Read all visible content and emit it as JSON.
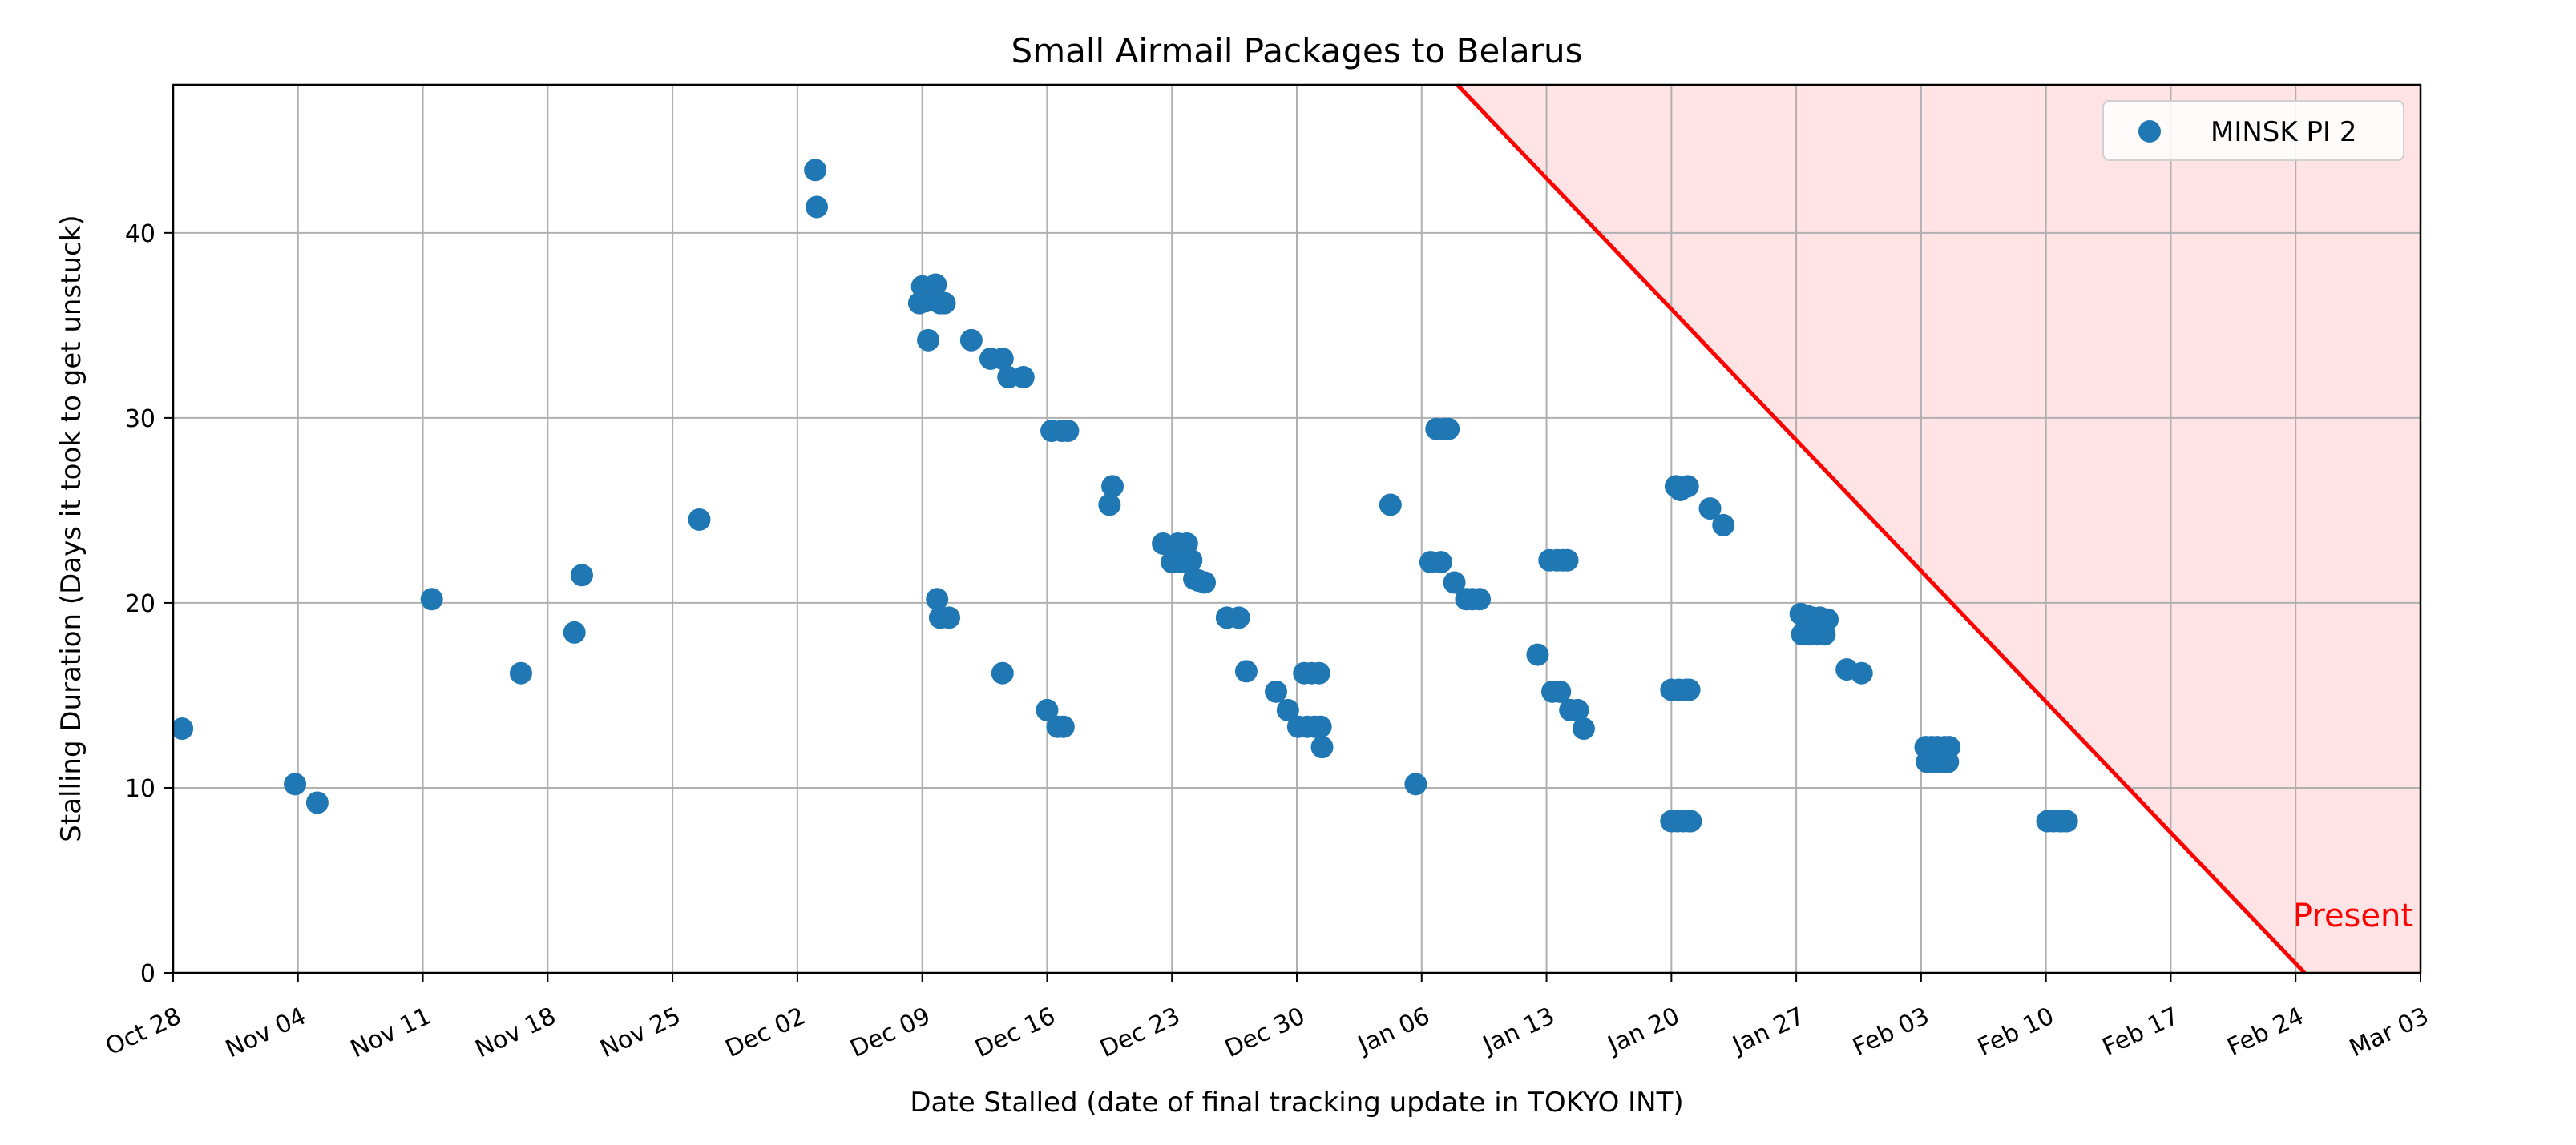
{
  "chart_data": {
    "type": "scatter",
    "title": "Small Airmail Packages to Belarus",
    "xlabel": "Date Stalled (date of final tracking update in TOKYO INT)",
    "ylabel": "Stalling Duration (Days it took to get unstuck)",
    "xlim": [
      "2024-10-28",
      "2025-03-03"
    ],
    "ylim": [
      0,
      48
    ],
    "x_ticks": [
      "2024-10-28",
      "2024-11-04",
      "2024-11-11",
      "2024-11-18",
      "2024-11-25",
      "2024-12-02",
      "2024-12-09",
      "2024-12-16",
      "2024-12-23",
      "2024-12-30",
      "2025-01-06",
      "2025-01-13",
      "2025-01-20",
      "2025-01-27",
      "2025-02-03",
      "2025-02-10",
      "2025-02-17",
      "2025-02-24",
      "2025-03-03"
    ],
    "x_tick_labels": [
      "Oct 28",
      "Nov 04",
      "Nov 11",
      "Nov 18",
      "Nov 25",
      "Dec 02",
      "Dec 09",
      "Dec 16",
      "Dec 23",
      "Dec 30",
      "Jan 06",
      "Jan 13",
      "Jan 20",
      "Jan 27",
      "Feb 03",
      "Feb 10",
      "Feb 17",
      "Feb 24",
      "Mar 03"
    ],
    "y_ticks": [
      0,
      10,
      20,
      30,
      40
    ],
    "grid": true,
    "legend_position": "top-right",
    "series": [
      {
        "name": "MINSK PI 2",
        "color": "#1f77b4",
        "points": [
          [
            "2024-10-28T12:00",
            13.2
          ],
          [
            "2024-11-03T20:00",
            10.2
          ],
          [
            "2024-11-05T02:00",
            9.2
          ],
          [
            "2024-11-11T12:00",
            20.2
          ],
          [
            "2024-11-16T12:00",
            16.2
          ],
          [
            "2024-11-19T12:00",
            18.4
          ],
          [
            "2024-11-19T22:00",
            21.5
          ],
          [
            "2024-11-26T12:00",
            24.5
          ],
          [
            "2024-12-03T00:00",
            43.4
          ],
          [
            "2024-12-03T02:00",
            41.4
          ],
          [
            "2024-12-08T20:00",
            36.2
          ],
          [
            "2024-12-09T00:00",
            37.1
          ],
          [
            "2024-12-09T04:00",
            36.3
          ],
          [
            "2024-12-09T08:00",
            34.2
          ],
          [
            "2024-12-09T12:00",
            36.8
          ],
          [
            "2024-12-09T18:00",
            37.2
          ],
          [
            "2024-12-10T00:00",
            36.2
          ],
          [
            "2024-12-10T06:00",
            36.2
          ],
          [
            "2024-12-09T20:00",
            20.2
          ],
          [
            "2024-12-10T00:00",
            19.2
          ],
          [
            "2024-12-10T12:00",
            19.2
          ],
          [
            "2024-12-11T18:00",
            34.2
          ],
          [
            "2024-12-12T20:00",
            33.2
          ],
          [
            "2024-12-13T12:00",
            33.2
          ],
          [
            "2024-12-13T12:00",
            16.2
          ],
          [
            "2024-12-13T20:00",
            32.2
          ],
          [
            "2024-12-14T16:00",
            32.2
          ],
          [
            "2024-12-16T00:00",
            14.2
          ],
          [
            "2024-12-16T06:00",
            29.3
          ],
          [
            "2024-12-16T14:00",
            13.3
          ],
          [
            "2024-12-16T20:00",
            29.3
          ],
          [
            "2024-12-16T22:00",
            13.3
          ],
          [
            "2024-12-17T04:00",
            29.3
          ],
          [
            "2024-12-19T12:00",
            25.3
          ],
          [
            "2024-12-19T16:00",
            26.3
          ],
          [
            "2024-12-22T12:00",
            23.2
          ],
          [
            "2024-12-23T00:00",
            22.2
          ],
          [
            "2024-12-23T08:00",
            23.2
          ],
          [
            "2024-12-23T14:00",
            22.2
          ],
          [
            "2024-12-23T20:00",
            23.2
          ],
          [
            "2024-12-24T02:00",
            22.3
          ],
          [
            "2024-12-24T06:00",
            21.3
          ],
          [
            "2024-12-24T12:00",
            21.2
          ],
          [
            "2024-12-24T20:00",
            21.1
          ],
          [
            "2024-12-26T02:00",
            19.2
          ],
          [
            "2024-12-26T18:00",
            19.2
          ],
          [
            "2024-12-27T04:00",
            16.3
          ],
          [
            "2024-12-28T20:00",
            15.2
          ],
          [
            "2024-12-29T12:00",
            14.2
          ],
          [
            "2024-12-30T02:00",
            13.3
          ],
          [
            "2024-12-30T10:00",
            16.2
          ],
          [
            "2024-12-30T14:00",
            13.3
          ],
          [
            "2024-12-30T20:00",
            16.2
          ],
          [
            "2024-12-31T00:00",
            13.3
          ],
          [
            "2024-12-31T06:00",
            16.2
          ],
          [
            "2024-12-31T08:00",
            13.3
          ],
          [
            "2024-12-31T10:00",
            12.2
          ],
          [
            "2025-01-04T06:00",
            25.3
          ],
          [
            "2025-01-05T16:00",
            10.2
          ],
          [
            "2025-01-06T12:00",
            22.2
          ],
          [
            "2025-01-06T20:00",
            29.4
          ],
          [
            "2025-01-07T02:00",
            22.2
          ],
          [
            "2025-01-07T06:00",
            29.4
          ],
          [
            "2025-01-07T12:00",
            29.4
          ],
          [
            "2025-01-07T20:00",
            21.1
          ],
          [
            "2025-01-08T12:00",
            20.2
          ],
          [
            "2025-01-08T20:00",
            20.2
          ],
          [
            "2025-01-09T06:00",
            20.2
          ],
          [
            "2025-01-12T12:00",
            17.2
          ],
          [
            "2025-01-13T04:00",
            22.3
          ],
          [
            "2025-01-13T08:00",
            15.2
          ],
          [
            "2025-01-13T14:00",
            22.3
          ],
          [
            "2025-01-13T18:00",
            15.2
          ],
          [
            "2025-01-13T22:00",
            22.3
          ],
          [
            "2025-01-14T04:00",
            22.3
          ],
          [
            "2025-01-14T08:00",
            14.2
          ],
          [
            "2025-01-14T18:00",
            14.2
          ],
          [
            "2025-01-15T02:00",
            13.2
          ],
          [
            "2025-01-20T00:00",
            8.2
          ],
          [
            "2025-01-20T00:00",
            15.3
          ],
          [
            "2025-01-20T06:00",
            26.3
          ],
          [
            "2025-01-20T08:00",
            8.2
          ],
          [
            "2025-01-20T10:00",
            15.3
          ],
          [
            "2025-01-20T12:00",
            26.1
          ],
          [
            "2025-01-20T16:00",
            8.2
          ],
          [
            "2025-01-20T20:00",
            15.3
          ],
          [
            "2025-01-20T22:00",
            26.3
          ],
          [
            "2025-01-21T00:00",
            8.2
          ],
          [
            "2025-01-21T00:00",
            15.3
          ],
          [
            "2025-01-21T02:00",
            8.2
          ],
          [
            "2025-01-22T04:00",
            25.1
          ],
          [
            "2025-01-22T22:00",
            24.2
          ],
          [
            "2025-01-27T06:00",
            19.4
          ],
          [
            "2025-01-27T08:00",
            18.3
          ],
          [
            "2025-01-27T14:00",
            19.3
          ],
          [
            "2025-01-27T18:00",
            18.3
          ],
          [
            "2025-01-27T22:00",
            19.2
          ],
          [
            "2025-01-28T04:00",
            18.3
          ],
          [
            "2025-01-28T08:00",
            19.2
          ],
          [
            "2025-01-28T14:00",
            18.3
          ],
          [
            "2025-01-28T18:00",
            19.1
          ],
          [
            "2025-01-29T20:00",
            16.4
          ],
          [
            "2025-01-30T16:00",
            16.2
          ],
          [
            "2025-02-03T06:00",
            12.2
          ],
          [
            "2025-02-03T08:00",
            11.4
          ],
          [
            "2025-02-03T14:00",
            12.2
          ],
          [
            "2025-02-03T18:00",
            11.4
          ],
          [
            "2025-02-03T22:00",
            12.2
          ],
          [
            "2025-02-04T04:00",
            11.4
          ],
          [
            "2025-02-04T08:00",
            12.2
          ],
          [
            "2025-02-04T12:00",
            11.4
          ],
          [
            "2025-02-04T14:00",
            12.2
          ],
          [
            "2025-02-10T02:00",
            8.2
          ],
          [
            "2025-02-10T10:00",
            8.2
          ],
          [
            "2025-02-10T18:00",
            8.2
          ],
          [
            "2025-02-10T22:00",
            8.2
          ],
          [
            "2025-02-11T04:00",
            8.2
          ]
        ]
      }
    ],
    "present_boundary": {
      "label": "Present",
      "color": "#ff0000",
      "shade_color": "#ffe3e5",
      "line": [
        [
          "2025-01-08T00:00",
          48
        ],
        [
          "2025-02-24T12:00",
          0
        ]
      ]
    }
  }
}
